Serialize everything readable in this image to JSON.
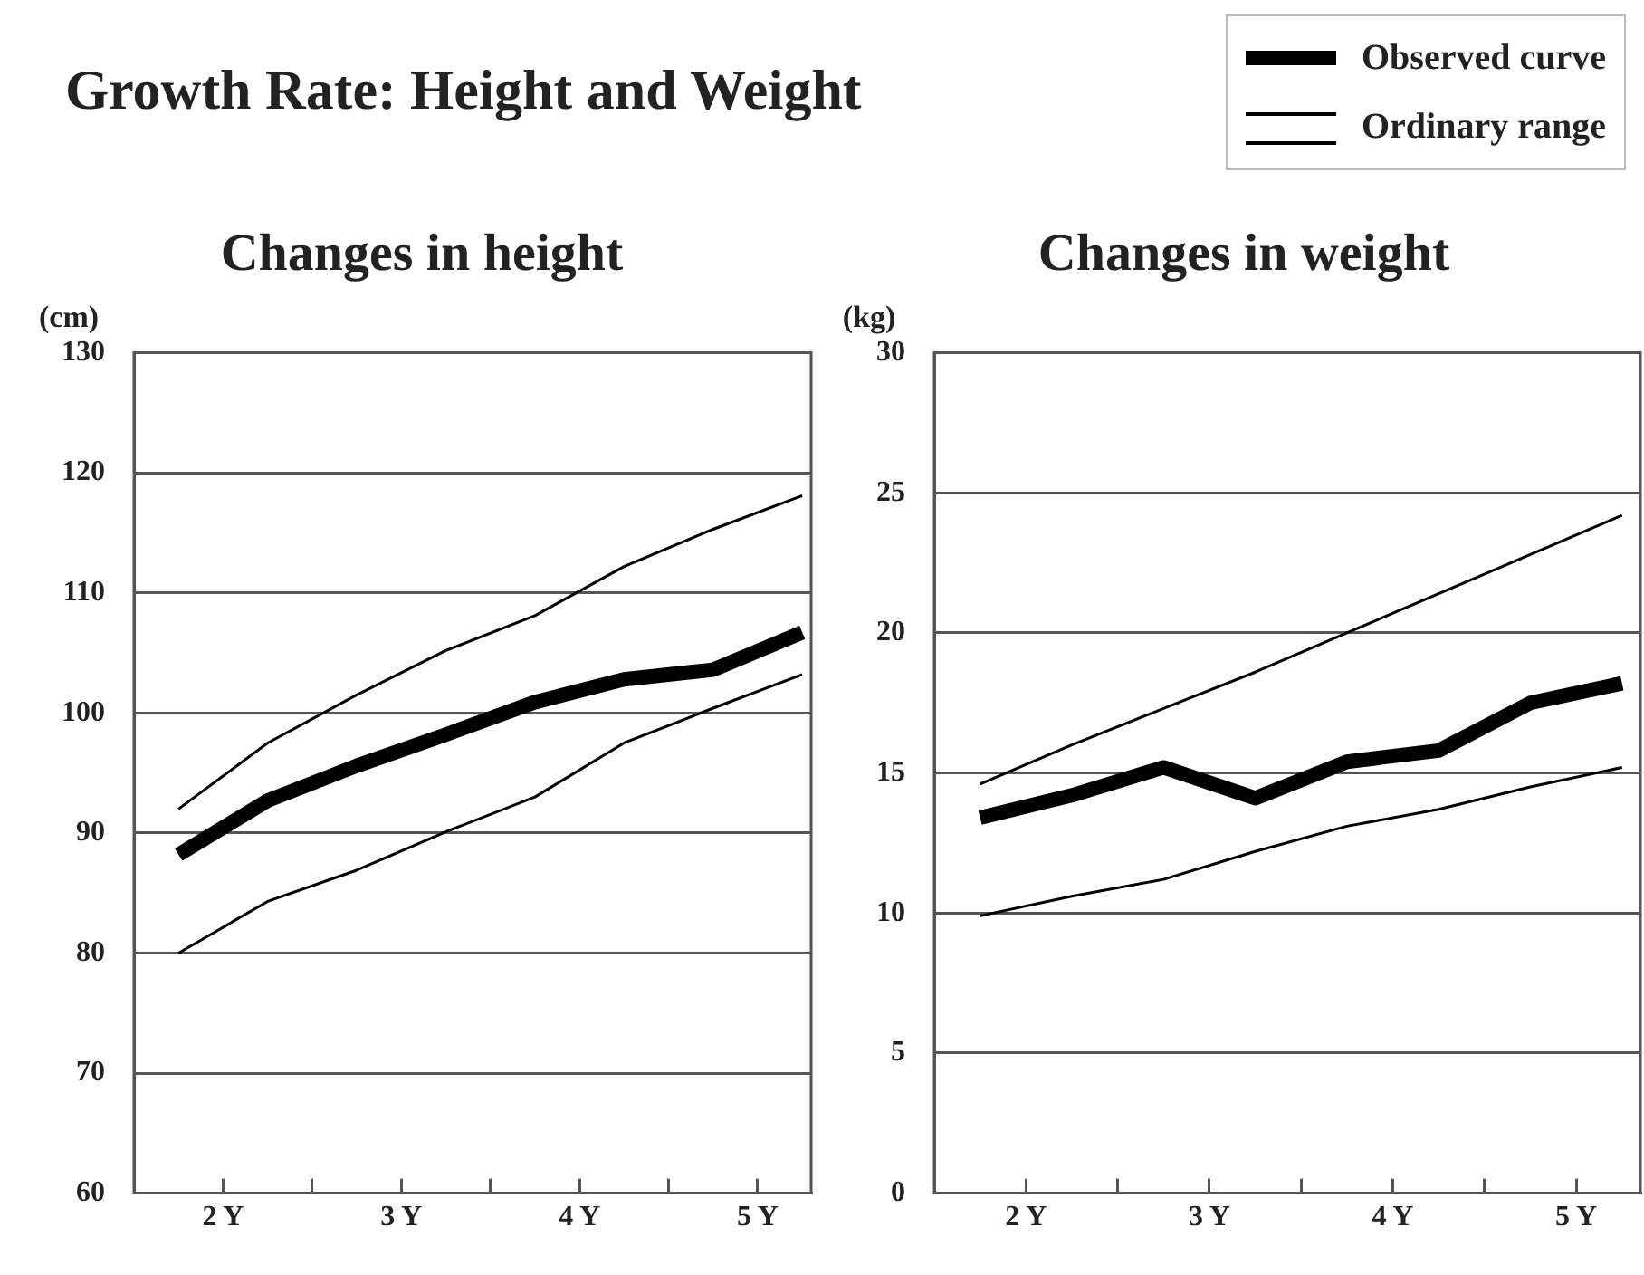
{
  "chart_data": [
    {
      "type": "other",
      "title": "Growth Rate: Height and Weight"
    },
    {
      "type": "line",
      "title": "Changes in height",
      "ylabel": "(cm)",
      "x": [
        1.75,
        2.25,
        2.75,
        3.25,
        3.75,
        4.25,
        4.75,
        5.25
      ],
      "series": [
        {
          "name": "Observed curve",
          "color": "#000000",
          "values": [
            88.2,
            92.7,
            95.6,
            98.2,
            100.9,
            102.8,
            103.6,
            106.7
          ]
        },
        {
          "name": "Ordinary range",
          "color": "#000000",
          "values": [
            92.0,
            97.5,
            101.5,
            105.2,
            108.1,
            112.2,
            115.3,
            118.1
          ]
        },
        {
          "color": "#000000",
          "values": [
            80.0,
            84.3,
            86.9,
            90.1,
            93.0,
            97.5,
            100.4,
            103.2
          ]
        }
      ],
      "xlim": [
        1.5,
        5.3
      ],
      "xticks": [
        {
          "value": 2,
          "label": "2 Y"
        },
        {
          "value": 2.5,
          "label": null
        },
        {
          "value": 3,
          "label": "3 Y"
        },
        {
          "value": 3.5,
          "label": null
        },
        {
          "value": 4,
          "label": "4 Y"
        },
        {
          "value": 4.5,
          "label": null
        },
        {
          "value": 5,
          "label": "5 Y"
        }
      ],
      "ylim": [
        60,
        130
      ],
      "yticks": [
        60,
        70,
        80,
        90,
        100,
        110,
        120,
        130
      ],
      "grid": "y",
      "legend": "top right",
      "marker": "none",
      "line_style": "solid"
    },
    {
      "type": "line",
      "title": "Changes in weight",
      "ylabel": "(kg)",
      "x": [
        1.75,
        2.25,
        2.75,
        3.25,
        3.75,
        4.25,
        4.75,
        5.25
      ],
      "series": [
        {
          "color": "#000000",
          "values": [
            13.4,
            14.2,
            15.2,
            14.1,
            15.4,
            15.8,
            17.5,
            18.2
          ]
        },
        {
          "color": "#000000",
          "values": [
            14.6,
            16.0,
            17.3,
            18.6,
            20.0,
            21.4,
            22.8,
            24.2
          ]
        },
        {
          "color": "#000000",
          "values": [
            9.9,
            10.6,
            11.2,
            12.2,
            13.1,
            13.7,
            14.5,
            15.2
          ]
        }
      ],
      "xlim": [
        1.5,
        5.35
      ],
      "xticks": [
        {
          "value": 2,
          "label": "2 Y"
        },
        {
          "value": 2.5,
          "label": null
        },
        {
          "value": 3,
          "label": "3 Y"
        },
        {
          "value": 3.5,
          "label": null
        },
        {
          "value": 4,
          "label": "4 Y"
        },
        {
          "value": 4.5,
          "label": null
        },
        {
          "value": 5,
          "label": "5 Y"
        }
      ],
      "ylim": [
        0,
        30
      ],
      "yticks": [
        0,
        5,
        10,
        15,
        20,
        25,
        30
      ],
      "grid": "y",
      "marker": "none",
      "line_style": "solid"
    }
  ]
}
